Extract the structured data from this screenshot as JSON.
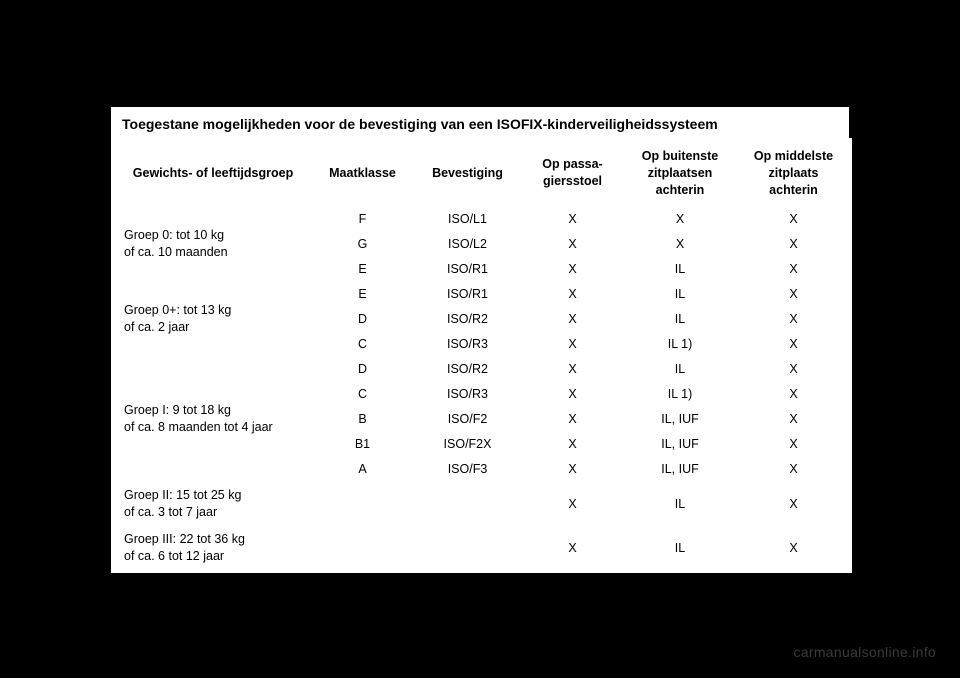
{
  "title": "Toegestane mogelijkheden voor de bevestiging van een ISOFIX-kinderveiligheidssysteem",
  "columns": {
    "c1": "Gewichts- of leeftijdsgroep",
    "c2": "Maatklasse",
    "c3": "Bevestiging",
    "c4_line1": "Op passa-",
    "c4_line2": "giersstoel",
    "c5_line1": "Op buitenste",
    "c5_line2": "zitplaatsen",
    "c5_line3": "achterin",
    "c6_line1": "Op middelste",
    "c6_line2": "zitplaats",
    "c6_line3": "achterin"
  },
  "groups": {
    "g0_line1": "Groep 0: tot 10 kg",
    "g0_line2": "of ca. 10 maanden",
    "g0p_line1": "Groep 0+: tot 13 kg",
    "g0p_line2": "of ca. 2 jaar",
    "g1_line1": "Groep I: 9 tot 18 kg",
    "g1_line2": "of ca. 8 maanden tot 4 jaar",
    "g2_line1": "Groep II: 15 tot 25 kg",
    "g2_line2": "of ca. 3 tot 7 jaar",
    "g3_line1": "Groep III: 22 tot 36 kg",
    "g3_line2": "of ca. 6 tot 12 jaar"
  },
  "rows": [
    {
      "mk": "F",
      "bev": "ISO/L1",
      "c4": "X",
      "c5": "X",
      "c6": "X"
    },
    {
      "mk": "G",
      "bev": "ISO/L2",
      "c4": "X",
      "c5": "X",
      "c6": "X"
    },
    {
      "mk": "E",
      "bev": "ISO/R1",
      "c4": "X",
      "c5": "IL",
      "c6": "X"
    },
    {
      "mk": "E",
      "bev": "ISO/R1",
      "c4": "X",
      "c5": "IL",
      "c6": "X"
    },
    {
      "mk": "D",
      "bev": "ISO/R2",
      "c4": "X",
      "c5": "IL",
      "c6": "X"
    },
    {
      "mk": "C",
      "bev": "ISO/R3",
      "c4": "X",
      "c5": "IL 1)",
      "c6": "X"
    },
    {
      "mk": "D",
      "bev": "ISO/R2",
      "c4": "X",
      "c5": "IL",
      "c6": "X"
    },
    {
      "mk": "C",
      "bev": "ISO/R3",
      "c4": "X",
      "c5": "IL 1)",
      "c6": "X"
    },
    {
      "mk": "B",
      "bev": "ISO/F2",
      "c4": "X",
      "c5": "IL, IUF",
      "c6": "X"
    },
    {
      "mk": "B1",
      "bev": "ISO/F2X",
      "c4": "X",
      "c5": "IL, IUF",
      "c6": "X"
    },
    {
      "mk": "A",
      "bev": "ISO/F3",
      "c4": "X",
      "c5": "IL, IUF",
      "c6": "X"
    },
    {
      "mk": "",
      "bev": "",
      "c4": "X",
      "c5": "IL",
      "c6": "X"
    },
    {
      "mk": "",
      "bev": "",
      "c4": "X",
      "c5": "IL",
      "c6": "X"
    }
  ],
  "watermark": "carmanualsonline.info",
  "style": {
    "background_color": "#000000",
    "cell_background": "#ffffff",
    "border_color": "#ffffff",
    "text_color": "#000000",
    "header_fontsize": 14,
    "cell_fontsize": 12.5,
    "watermark_color": "#3a3a3a",
    "watermark_fontsize": 14
  }
}
